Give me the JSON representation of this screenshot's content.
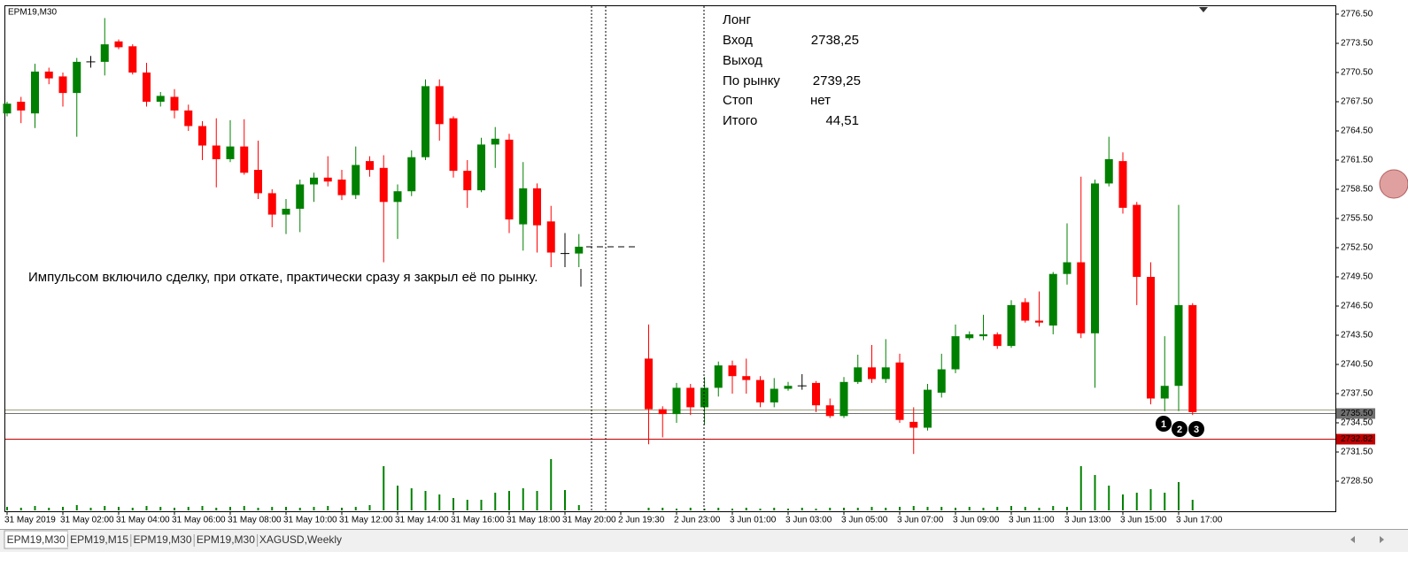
{
  "symbol_label": "EPM19,M30",
  "annotation": "Импульсом включило сделку, при откате, практически сразу я закрыл её по рынку.",
  "info": [
    [
      "Лонг",
      null
    ],
    [
      "Вход",
      "2738,25"
    ],
    [
      "Выход",
      null
    ],
    [
      "По рынку",
      "2739,25"
    ],
    [
      "Стоп",
      "нет"
    ],
    [
      "Итого",
      "44,51"
    ]
  ],
  "markers": [
    "1",
    "2",
    "3"
  ],
  "tabs": [
    "EPM19,M30",
    "EPM19,M15",
    "EPM19,M30",
    "EPM19,M30",
    "XAGUSD,Weekly"
  ],
  "chart_data": {
    "type": "candlestick",
    "up_color": "#008000",
    "down_color": "#ff0000",
    "ylim": [
      2725.41,
      2777.41
    ],
    "yticks": [
      {
        "value": 2776.5,
        "label": "2776.50"
      },
      {
        "value": 2773.5,
        "label": "2773.50"
      },
      {
        "value": 2770.5,
        "label": "2770.50"
      },
      {
        "value": 2767.5,
        "label": "2767.50"
      },
      {
        "value": 2764.5,
        "label": "2764.50"
      },
      {
        "value": 2761.5,
        "label": "2761.50"
      },
      {
        "value": 2758.5,
        "label": "2758.50"
      },
      {
        "value": 2755.5,
        "label": "2755.50"
      },
      {
        "value": 2752.5,
        "label": "2752.50"
      },
      {
        "value": 2749.5,
        "label": "2749.50"
      },
      {
        "value": 2746.5,
        "label": "2746.50"
      },
      {
        "value": 2743.5,
        "label": "2743.50"
      },
      {
        "value": 2740.5,
        "label": "2740.50"
      },
      {
        "value": 2737.5,
        "label": "2737.50"
      },
      {
        "value": 2734.5,
        "label": "2734.50"
      },
      {
        "value": 2731.5,
        "label": "2731.50"
      },
      {
        "value": 2728.5,
        "label": "2728.50"
      }
    ],
    "price_lines": [
      {
        "value": 2735.86,
        "color": "#a0a080"
      },
      {
        "value": 2735.5,
        "label": "2735.50",
        "color": "#707070"
      },
      {
        "value": 2732.82,
        "label": "2732.82",
        "color": "#c00000"
      }
    ],
    "categories": [
      "31 May 2019",
      null,
      null,
      null,
      "31 May 02:00",
      null,
      null,
      null,
      "31 May 04:00",
      null,
      null,
      null,
      "31 May 06:00",
      null,
      null,
      null,
      "31 May 08:00",
      null,
      null,
      null,
      "31 May 10:00",
      null,
      null,
      null,
      "31 May 12:00",
      null,
      null,
      null,
      "31 May 14:00",
      null,
      null,
      null,
      "31 May 16:00",
      null,
      null,
      null,
      "31 May 18:00",
      null,
      null,
      null,
      "31 May 20:00",
      null,
      null,
      null,
      "2 Jun 19:30",
      null,
      null,
      null,
      "2 Jun 23:00",
      null,
      null,
      null,
      "3 Jun 01:00",
      null,
      null,
      null,
      "3 Jun 03:00",
      null,
      null,
      null,
      "3 Jun 05:00",
      null,
      null,
      null,
      "3 Jun 07:00",
      null,
      null,
      null,
      "3 Jun 09:00",
      null,
      null,
      null,
      "3 Jun 11:00",
      null,
      null,
      null,
      "3 Jun 13:00",
      null,
      null,
      null,
      "3 Jun 15:00",
      null,
      null,
      null,
      "3 Jun 17:00",
      null
    ],
    "ohlc": [
      [
        2766.3,
        2767.5,
        2766.0,
        2767.3
      ],
      [
        2767.5,
        2768.0,
        2765.3,
        2766.6
      ],
      [
        2766.3,
        2771.4,
        2764.8,
        2770.6
      ],
      [
        2770.6,
        2771.0,
        2769.3,
        2769.9
      ],
      [
        2770.1,
        2770.5,
        2767.0,
        2768.4
      ],
      [
        2768.4,
        2772.0,
        2763.9,
        2771.6
      ],
      [
        2771.6,
        2772.2,
        2771.0,
        2771.6
      ],
      [
        2771.6,
        2776.1,
        2770.2,
        2773.4
      ],
      [
        2773.7,
        2773.9,
        2772.9,
        2773.1
      ],
      [
        2773.2,
        2773.4,
        2770.3,
        2770.5
      ],
      [
        2770.5,
        2771.5,
        2767.0,
        2767.5
      ],
      [
        2767.5,
        2768.5,
        2767.0,
        2768.1
      ],
      [
        2768.0,
        2768.8,
        2765.8,
        2766.6
      ],
      [
        2766.6,
        2767.2,
        2764.5,
        2765.0
      ],
      [
        2765.0,
        2765.5,
        2761.5,
        2763.0
      ],
      [
        2763.0,
        2765.8,
        2758.7,
        2761.6
      ],
      [
        2761.6,
        2765.6,
        2761.3,
        2762.9
      ],
      [
        2762.9,
        2765.7,
        2760.0,
        2760.2
      ],
      [
        2760.5,
        2763.5,
        2757.5,
        2758.1
      ],
      [
        2758.1,
        2758.5,
        2754.6,
        2755.9
      ],
      [
        2755.9,
        2757.5,
        2753.9,
        2756.5
      ],
      [
        2756.5,
        2759.5,
        2754.1,
        2759.0
      ],
      [
        2759.0,
        2760.2,
        2757.2,
        2759.7
      ],
      [
        2759.7,
        2761.9,
        2758.8,
        2759.3
      ],
      [
        2759.5,
        2760.5,
        2757.4,
        2757.9
      ],
      [
        2757.9,
        2762.9,
        2757.5,
        2761.0
      ],
      [
        2761.4,
        2761.9,
        2759.8,
        2760.5
      ],
      [
        2760.7,
        2762.0,
        2751.0,
        2757.2
      ],
      [
        2757.2,
        2759.0,
        2753.4,
        2758.3
      ],
      [
        2758.3,
        2762.5,
        2757.8,
        2761.8
      ],
      [
        2761.8,
        2769.8,
        2761.5,
        2769.1
      ],
      [
        2769.1,
        2769.8,
        2763.5,
        2765.2
      ],
      [
        2765.8,
        2766.0,
        2759.7,
        2760.4
      ],
      [
        2760.4,
        2761.5,
        2756.6,
        2758.4
      ],
      [
        2758.4,
        2763.8,
        2758.2,
        2763.1
      ],
      [
        2763.1,
        2764.9,
        2760.7,
        2763.7
      ],
      [
        2763.6,
        2764.2,
        2754.0,
        2755.4
      ],
      [
        2754.9,
        2761.3,
        2752.2,
        2758.6
      ],
      [
        2758.6,
        2759.1,
        2752.0,
        2754.8
      ],
      [
        2755.2,
        2756.8,
        2750.5,
        2752.0
      ],
      [
        2751.9,
        2754.0,
        2750.5,
        2751.9
      ],
      [
        2751.9,
        2753.9,
        2750.5,
        2752.6
      ],
      null,
      null,
      null,
      null,
      [
        2741.1,
        2744.6,
        2732.3,
        2735.9
      ],
      [
        2735.9,
        2736.2,
        2733.0,
        2735.4
      ],
      [
        2735.4,
        2738.6,
        2734.5,
        2738.1
      ],
      [
        2738.1,
        2738.5,
        2735.3,
        2736.1
      ],
      [
        2736.1,
        2739.2,
        2734.3,
        2738.1
      ],
      [
        2738.1,
        2740.8,
        2737.2,
        2740.4
      ],
      [
        2740.4,
        2740.9,
        2737.5,
        2739.3
      ],
      [
        2739.3,
        2741.1,
        2737.5,
        2738.9
      ],
      [
        2738.9,
        2739.3,
        2736.1,
        2736.6
      ],
      [
        2736.6,
        2739.1,
        2736.1,
        2738.0
      ],
      [
        2738.0,
        2738.7,
        2737.8,
        2738.3
      ],
      [
        2738.3,
        2739.5,
        2737.9,
        2738.3
      ],
      [
        2738.6,
        2738.8,
        2735.6,
        2736.3
      ],
      [
        2736.3,
        2737.0,
        2735.0,
        2735.2
      ],
      [
        2735.2,
        2739.2,
        2735.0,
        2738.7
      ],
      [
        2738.7,
        2741.5,
        2738.5,
        2740.2
      ],
      [
        2740.2,
        2742.5,
        2738.6,
        2739.0
      ],
      [
        2739.0,
        2743.1,
        2738.6,
        2740.2
      ],
      [
        2740.7,
        2741.6,
        2734.5,
        2734.8
      ],
      [
        2734.6,
        2736.1,
        2731.3,
        2734.0
      ],
      [
        2734.0,
        2738.5,
        2733.7,
        2737.9
      ],
      [
        2737.6,
        2741.6,
        2737.1,
        2740.0
      ],
      [
        2740.0,
        2744.6,
        2739.6,
        2743.4
      ],
      [
        2743.2,
        2743.9,
        2743.0,
        2743.6
      ],
      [
        2743.4,
        2745.6,
        2743.0,
        2743.6
      ],
      [
        2743.6,
        2743.8,
        2742.1,
        2742.4
      ],
      [
        2742.4,
        2747.1,
        2742.2,
        2746.6
      ],
      [
        2746.9,
        2747.3,
        2744.8,
        2745.0
      ],
      [
        2745.0,
        2748.0,
        2744.4,
        2744.8
      ],
      [
        2744.5,
        2750.0,
        2743.6,
        2749.8
      ],
      [
        2749.8,
        2755.0,
        2748.7,
        2751.0
      ],
      [
        2751.0,
        2759.8,
        2743.2,
        2743.7
      ],
      [
        2743.7,
        2759.5,
        2738.1,
        2759.1
      ],
      [
        2759.1,
        2763.9,
        2758.8,
        2761.6
      ],
      [
        2761.4,
        2762.3,
        2756.0,
        2756.6
      ],
      [
        2756.9,
        2757.2,
        2746.6,
        2749.5
      ],
      [
        2749.5,
        2751.0,
        2736.4,
        2737.0
      ],
      [
        2737.0,
        2743.4,
        2735.7,
        2738.3
      ],
      [
        2738.3,
        2756.9,
        2735.7,
        2746.6
      ],
      [
        2746.6,
        2746.8,
        2735.3,
        2735.6
      ]
    ],
    "volumes": [
      4,
      3,
      5,
      3,
      4,
      6,
      3,
      5,
      4,
      3,
      5,
      4,
      3,
      4,
      5,
      3,
      4,
      5,
      3,
      4,
      4,
      3,
      4,
      5,
      3,
      4,
      6,
      50,
      28,
      25,
      22,
      18,
      14,
      12,
      12,
      20,
      22,
      25,
      22,
      58,
      23,
      6,
      null,
      null,
      null,
      null,
      3,
      3,
      2,
      3,
      2,
      3,
      2,
      3,
      2,
      3,
      2,
      3,
      2,
      3,
      3,
      3,
      4,
      3,
      4,
      5,
      4,
      4,
      3,
      4,
      3,
      4,
      5,
      4,
      3,
      5,
      4,
      50,
      40,
      28,
      18,
      20,
      24,
      20,
      32,
      12
    ]
  }
}
